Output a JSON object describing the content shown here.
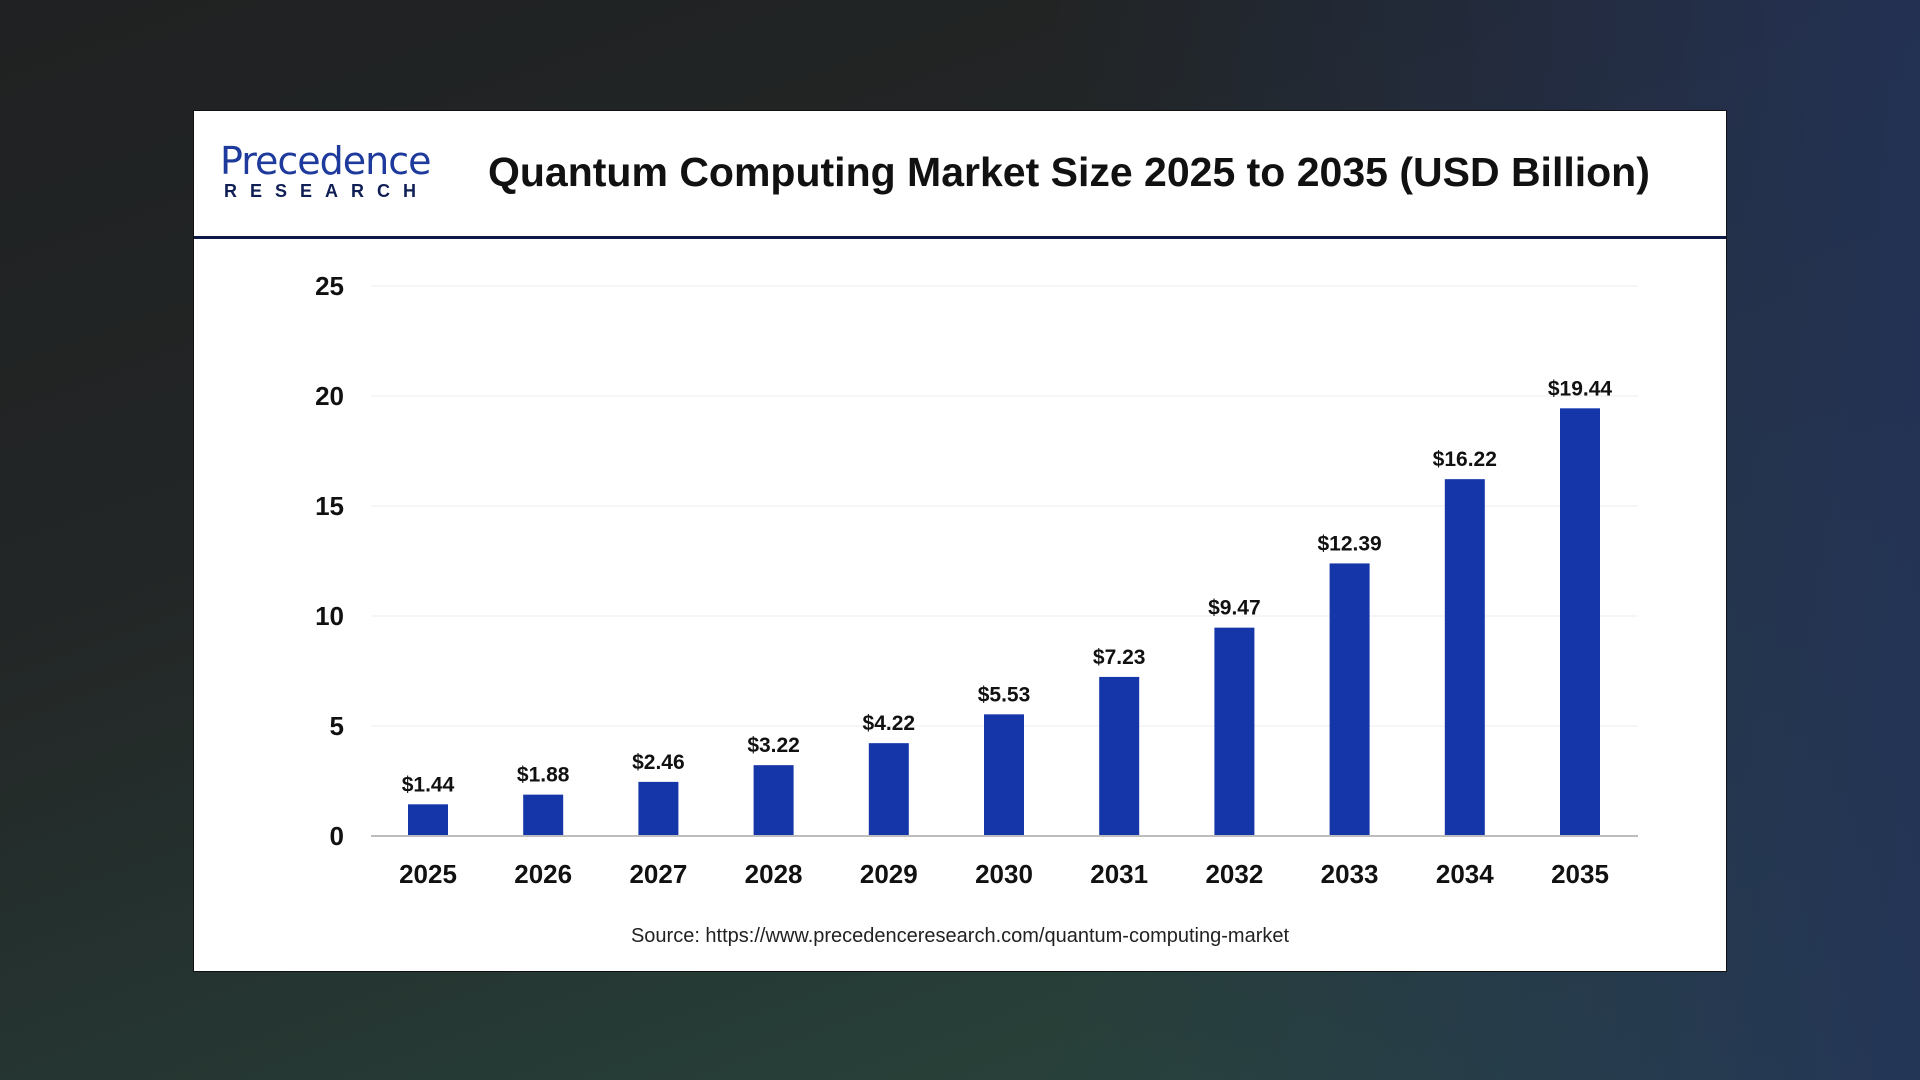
{
  "logo": {
    "line1": "Precedence",
    "line2": "RESEARCH"
  },
  "title": "Quantum Computing Market Size 2025 to 2035 (USD Billion)",
  "source": "Source: https://www.precedenceresearch.com/quantum-computing-market",
  "colors": {
    "bar": "#1436a8",
    "header_rule": "#0e1a45"
  },
  "chart_data": {
    "type": "bar",
    "title": "Quantum Computing Market Size 2025 to 2035 (USD Billion)",
    "categories": [
      "2025",
      "2026",
      "2027",
      "2028",
      "2029",
      "2030",
      "2031",
      "2032",
      "2033",
      "2034",
      "2035"
    ],
    "values": [
      1.44,
      1.88,
      2.46,
      3.22,
      4.22,
      5.53,
      7.23,
      9.47,
      12.39,
      16.22,
      19.44
    ],
    "data_labels": [
      "$1.44",
      "$1.88",
      "$2.46",
      "$3.22",
      "$4.22",
      "$5.53",
      "$7.23",
      "$9.47",
      "$12.39",
      "$16.22",
      "$19.44"
    ],
    "yticks": [
      "0",
      "5",
      "10",
      "15",
      "20",
      "25"
    ],
    "ylim": [
      0,
      25
    ],
    "grid": true,
    "xlabel": "",
    "ylabel": ""
  }
}
